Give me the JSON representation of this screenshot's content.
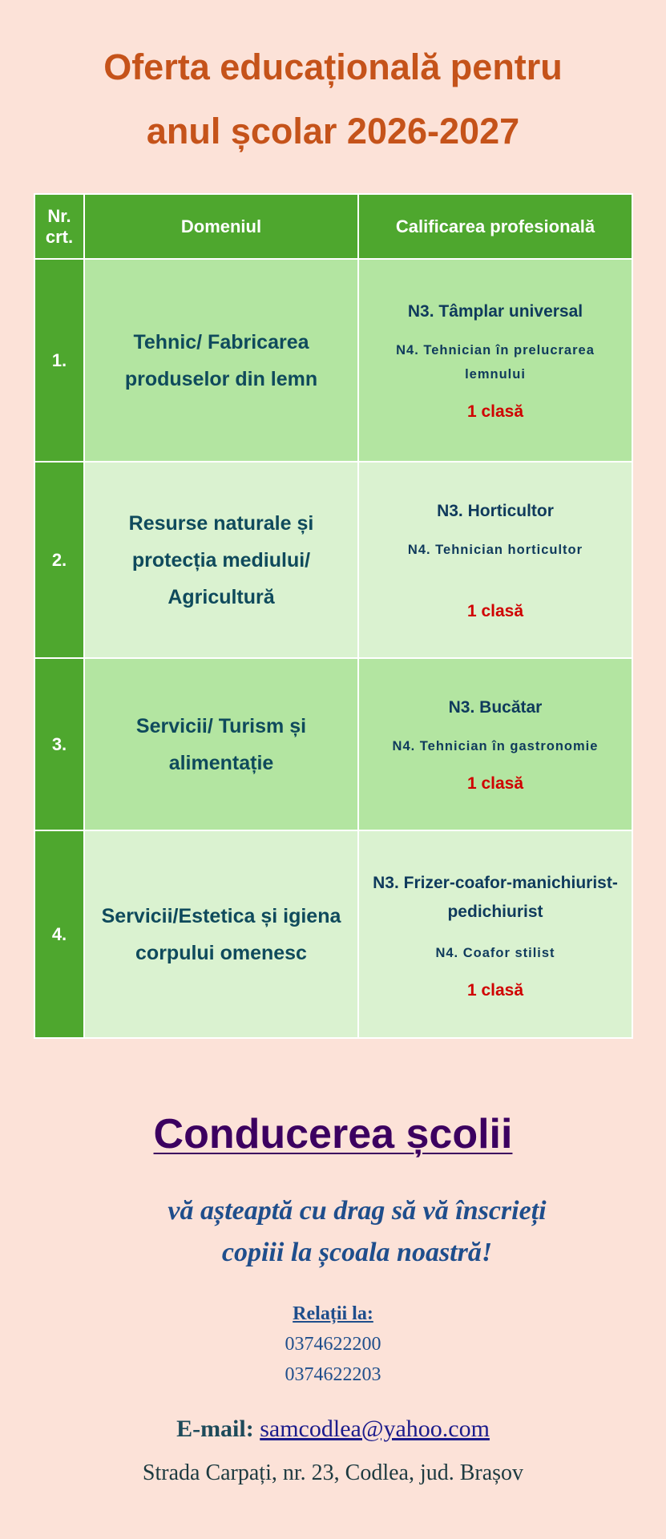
{
  "title": {
    "line1": "Oferta educațională pentru",
    "line2": "anul școlar 2026-2027"
  },
  "table": {
    "headers": {
      "nr_line1": "Nr.",
      "nr_line2": "crt.",
      "domain": "Domeniul",
      "qualification": "Calificarea profesională"
    },
    "rows": [
      {
        "nr": "1.",
        "domain": "Tehnic/ Fabricarea produselor din lemn",
        "n3": "N3. Tâmplar universal",
        "n4": "N4. Tehnician în prelucrarea lemnului",
        "classes": "1 clasă"
      },
      {
        "nr": "2.",
        "domain": "Resurse naturale și protecția mediului/ Agricultură",
        "n3": "N3. Horticultor",
        "n4": "N4. Tehnician horticultor",
        "classes": "1 clasă"
      },
      {
        "nr": "3.",
        "domain": "Servicii/ Turism și alimentație",
        "n3": "N3. Bucătar",
        "n4": "N4. Tehnician în gastronomie",
        "classes": "1 clasă"
      },
      {
        "nr": "4.",
        "domain": "Servicii/Estetica și igiena corpului omenesc",
        "n3": "N3. Frizer-coafor-manichiurist-pedichiurist",
        "n4": "N4. Coafor stilist",
        "classes": "1 clasă"
      }
    ]
  },
  "footer": {
    "heading": "Conducerea școlii",
    "invite_line1": "vă așteaptă cu drag să vă înscrieți",
    "invite_line2": "copiii la școala noastră!",
    "relations_label": "Relații la:",
    "phone1": "0374622200",
    "phone2": "0374622203",
    "email_label": "E-mail:",
    "email": "samcodlea@yahoo.com",
    "address": "Strada Carpați, nr. 23, Codlea, jud. Brașov"
  },
  "colors": {
    "background": "#fce2d8",
    "title": "#c5531a",
    "header_green": "#4ea72e",
    "row_dark": "#b3e5a1",
    "row_light": "#daf2d0",
    "class_red": "#d00000",
    "heading_purple": "#3c0060"
  }
}
